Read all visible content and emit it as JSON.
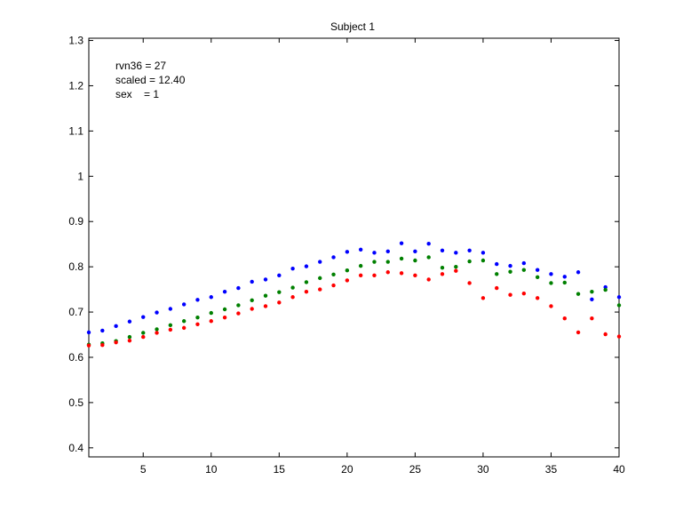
{
  "chart_data": {
    "type": "scatter",
    "title": "Subject 1",
    "xlabel": "",
    "ylabel": "",
    "xlim": [
      1,
      40
    ],
    "ylim": [
      0.38,
      1.305
    ],
    "xticks": [
      5,
      10,
      15,
      20,
      25,
      30,
      35,
      40
    ],
    "yticks": [
      0.4,
      0.5,
      0.6,
      0.7,
      0.8,
      0.9,
      1,
      1.1,
      1.2,
      1.3
    ],
    "ytick_labels": [
      "0.4",
      "0.5",
      "0.6",
      "0.7",
      "0.8",
      "0.9",
      "1",
      "1.1",
      "1.2",
      "1.3"
    ],
    "grid": false,
    "annotations": [
      "rvn36 = 27",
      "scaled = 12.40",
      "sex    = 1"
    ],
    "x": [
      1,
      2,
      3,
      4,
      5,
      6,
      7,
      8,
      9,
      10,
      11,
      12,
      13,
      14,
      15,
      16,
      17,
      18,
      19,
      20,
      21,
      22,
      23,
      24,
      25,
      26,
      27,
      28,
      29,
      30,
      31,
      32,
      33,
      34,
      35,
      36,
      37,
      38,
      39,
      40
    ],
    "series": [
      {
        "color": "#0000ff",
        "values": [
          0.655,
          0.659,
          0.669,
          0.679,
          0.689,
          0.699,
          0.707,
          0.717,
          0.727,
          0.733,
          0.745,
          0.753,
          0.767,
          0.772,
          0.781,
          0.796,
          0.801,
          0.811,
          0.821,
          0.833,
          0.838,
          0.831,
          0.834,
          0.852,
          0.834,
          0.851,
          0.836,
          0.831,
          0.836,
          0.831,
          0.806,
          0.802,
          0.808,
          0.793,
          0.784,
          0.778,
          0.788,
          0.728,
          0.755,
          0.733
        ]
      },
      {
        "color": "#008000",
        "values": [
          0.628,
          0.631,
          0.636,
          0.645,
          0.654,
          0.662,
          0.671,
          0.68,
          0.688,
          0.698,
          0.706,
          0.715,
          0.726,
          0.736,
          0.744,
          0.754,
          0.766,
          0.775,
          0.783,
          0.792,
          0.802,
          0.811,
          0.811,
          0.818,
          0.814,
          0.821,
          0.798,
          0.8,
          0.812,
          0.814,
          0.784,
          0.789,
          0.793,
          0.777,
          0.764,
          0.765,
          0.74,
          0.745,
          0.749,
          0.715
        ]
      },
      {
        "color": "#ff0000",
        "values": [
          0.626,
          0.627,
          0.633,
          0.637,
          0.645,
          0.654,
          0.661,
          0.665,
          0.673,
          0.68,
          0.688,
          0.697,
          0.707,
          0.713,
          0.721,
          0.733,
          0.745,
          0.75,
          0.759,
          0.77,
          0.781,
          0.781,
          0.788,
          0.786,
          0.781,
          0.772,
          0.784,
          0.791,
          0.764,
          0.731,
          0.753,
          0.738,
          0.741,
          0.731,
          0.713,
          0.686,
          0.655,
          0.686,
          0.651,
          0.646
        ]
      }
    ]
  }
}
